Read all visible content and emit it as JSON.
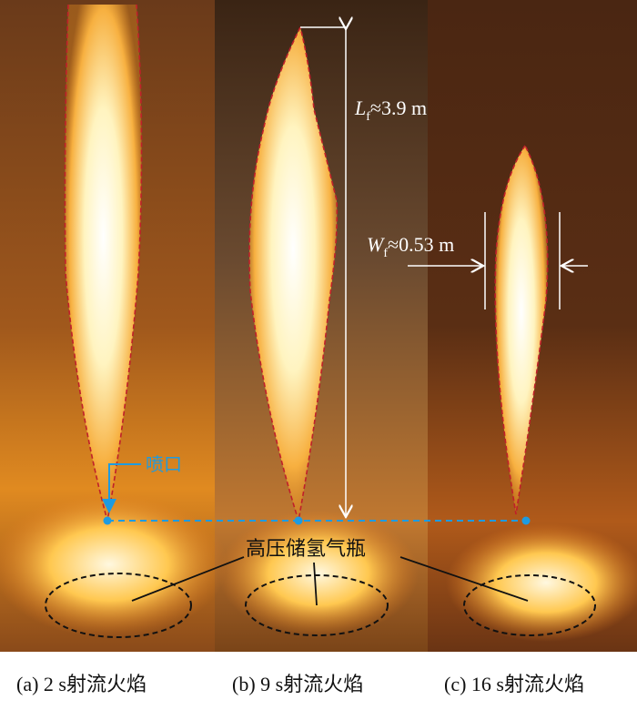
{
  "panels": [
    {
      "caption": "(a) 2 s射流火焰"
    },
    {
      "caption": "(b) 9 s射流火焰"
    },
    {
      "caption": "(c) 16 s射流火焰"
    }
  ],
  "annotations": {
    "flame_length": {
      "symbol": "L",
      "subscript": "f",
      "value": "≈3.9 m"
    },
    "flame_width": {
      "symbol": "W",
      "subscript": "f",
      "value": "≈0.53 m"
    },
    "nozzle_label": "喷口",
    "cylinder_label": "高压储氢气瓶"
  },
  "colors": {
    "flame_outline": "#c0202a",
    "nozzle_line": "#1e9be0",
    "cylinder_outline": "#111111",
    "annotation": "#ffffff"
  }
}
